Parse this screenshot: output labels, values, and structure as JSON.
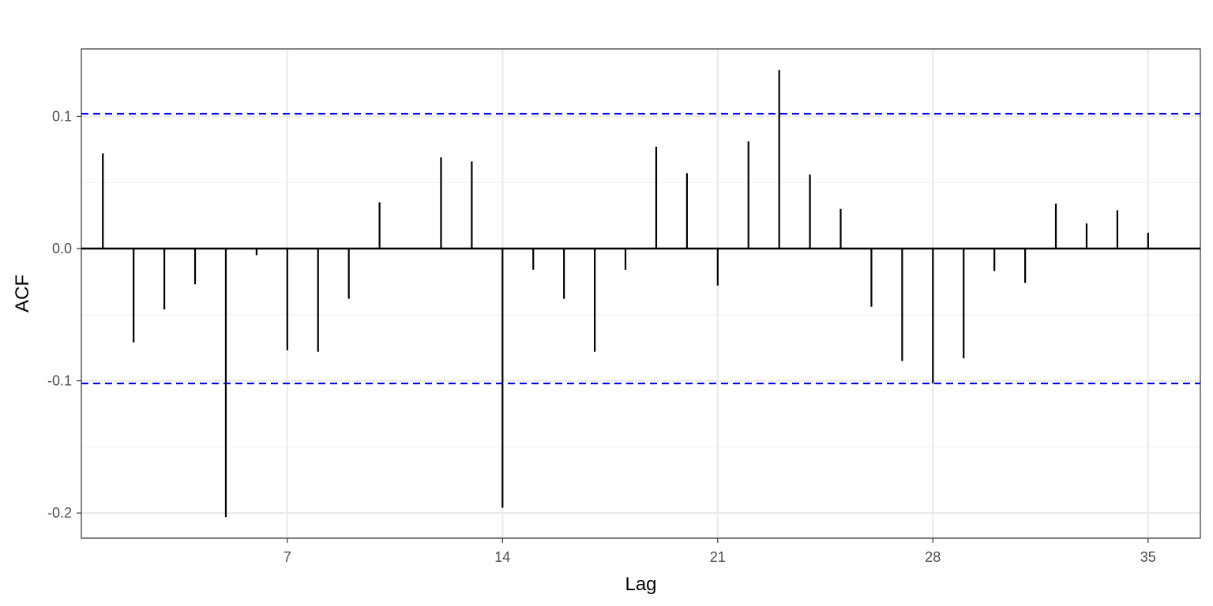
{
  "chart_data": {
    "type": "bar",
    "xlabel": "Lag",
    "ylabel": "ACF",
    "xlim": [
      0.3,
      36.7
    ],
    "ylim": [
      -0.219,
      0.151
    ],
    "x_ticks": [
      7,
      14,
      21,
      28,
      35
    ],
    "x_tick_labels": [
      "7",
      "14",
      "21",
      "28",
      "35"
    ],
    "y_ticks": [
      -0.2,
      -0.1,
      0.0,
      0.1
    ],
    "y_tick_labels": [
      "-0.2",
      "-0.1",
      "0.0",
      "0.1"
    ],
    "grid": true,
    "confidence_bounds": {
      "upper": 0.102,
      "lower": -0.102,
      "color": "#0000ff",
      "style": "dashed"
    },
    "lags": [
      1,
      2,
      3,
      4,
      5,
      6,
      7,
      8,
      9,
      10,
      11,
      12,
      13,
      14,
      15,
      16,
      17,
      18,
      19,
      20,
      21,
      22,
      23,
      24,
      25,
      26,
      27,
      28,
      29,
      30,
      31,
      32,
      33,
      34,
      35
    ],
    "values": [
      0.072,
      -0.071,
      -0.046,
      -0.027,
      -0.203,
      -0.005,
      -0.077,
      -0.078,
      -0.038,
      0.035,
      0.0,
      0.069,
      0.066,
      -0.196,
      -0.016,
      -0.038,
      -0.078,
      -0.016,
      0.077,
      0.057,
      -0.028,
      0.081,
      0.135,
      0.056,
      0.03,
      -0.044,
      -0.085,
      -0.102,
      -0.083,
      -0.017,
      -0.026,
      0.034,
      0.019,
      0.029,
      0.012
    ],
    "colors": {
      "bar": "#000000",
      "panel_border": "#333333",
      "grid_major": "#ebebeb",
      "grid_minor": "#f2f2f2"
    }
  }
}
